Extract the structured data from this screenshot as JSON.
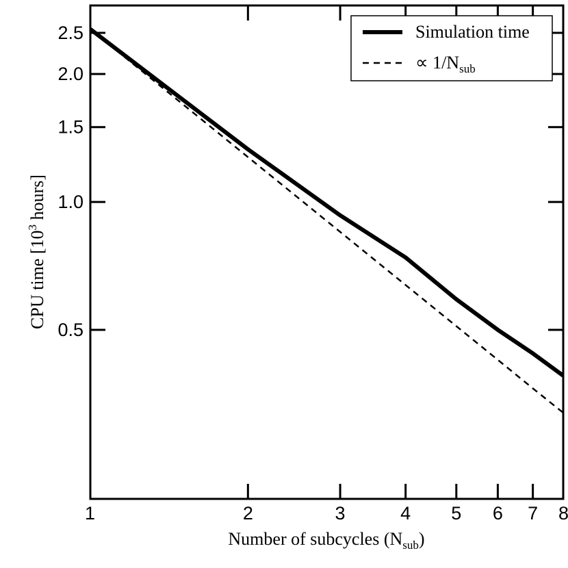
{
  "chart_data": {
    "type": "line",
    "xlabel": "Number of subcycles (N",
    "xlabel_subscript": "sub",
    "xlabel_suffix": ")",
    "ylabel": "CPU time [10",
    "ylabel_superscript": "3",
    "ylabel_suffix": " hours]",
    "x_scale": "log",
    "y_scale": "log",
    "xlim": [
      1,
      8
    ],
    "ylim": [
      0.2,
      2.9
    ],
    "x_ticks": [
      1,
      2,
      3,
      4,
      5,
      6,
      7,
      8
    ],
    "x_tick_labels": [
      "1",
      "2",
      "3",
      "4",
      "5",
      "6",
      "7",
      "8"
    ],
    "y_ticks": [
      0.5,
      1.0,
      1.5,
      2.0,
      2.5
    ],
    "y_tick_labels": [
      "0.5",
      "1.0",
      "1.5",
      "2.0",
      "2.5"
    ],
    "grid": false,
    "legend_position": "top-right",
    "series": [
      {
        "name": "Simulation time",
        "style": "solid",
        "color": "#000000",
        "x": [
          1,
          2,
          3,
          4,
          5,
          6,
          7,
          8
        ],
        "y": [
          2.55,
          1.33,
          0.93,
          0.74,
          0.59,
          0.5,
          0.44,
          0.39
        ]
      },
      {
        "name": "∝ 1/N",
        "name_subscript": "sub",
        "style": "dashed",
        "color": "#000000",
        "x": [
          1,
          2,
          3,
          4,
          5,
          6,
          7,
          8
        ],
        "y": [
          2.55,
          1.275,
          0.85,
          0.6375,
          0.51,
          0.425,
          0.364,
          0.319
        ]
      }
    ]
  }
}
